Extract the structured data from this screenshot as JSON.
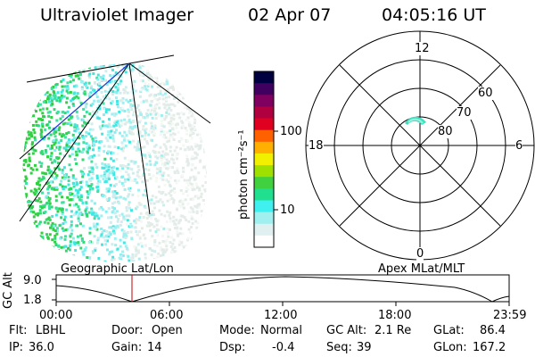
{
  "header": {
    "instrument": "Ultraviolet Imager",
    "date": "02 Apr 07",
    "time": "04:05:16 UT"
  },
  "colorbar": {
    "label": "photon cm⁻²s⁻¹",
    "ticks": [
      "100",
      "10"
    ],
    "colors": [
      "#000040",
      "#400060",
      "#800060",
      "#b00040",
      "#e00020",
      "#ff6000",
      "#ffb000",
      "#f0f000",
      "#a0e000",
      "#40d040",
      "#20e090",
      "#40f0f0",
      "#a0f0f0",
      "#e0f0f0",
      "#ffffff"
    ]
  },
  "polar_plot": {
    "mlt_labels": [
      "12",
      "18",
      "6",
      "0"
    ],
    "lat_labels": [
      "60",
      "70",
      "80"
    ]
  },
  "timeline": {
    "left_label": "Geographic Lat/Lon",
    "right_label": "Apex MLat/MLT",
    "yaxis_title": "GC Alt",
    "y_ticks": [
      "9.0",
      "1.8"
    ],
    "x_ticks": [
      "00:00",
      "06:00",
      "12:00",
      "18:00",
      "23:59"
    ],
    "current_marker_color": "#c00000"
  },
  "status": {
    "row1": [
      {
        "label": "Flt:",
        "value": "LBHL"
      },
      {
        "label": "Door:",
        "value": "Open"
      },
      {
        "label": "Mode:",
        "value": "Normal"
      },
      {
        "label": "GC Alt:",
        "value": "2.1 Re"
      },
      {
        "label": "GLat:",
        "value": "86.4"
      }
    ],
    "row2": [
      {
        "label": "IP:",
        "value": "36.0"
      },
      {
        "label": "Gain:",
        "value": "14"
      },
      {
        "label": "Dsp:",
        "value": "-0.4"
      },
      {
        "label": "Seq:",
        "value": "39"
      },
      {
        "label": "GLon:",
        "value": "167.2"
      }
    ]
  }
}
